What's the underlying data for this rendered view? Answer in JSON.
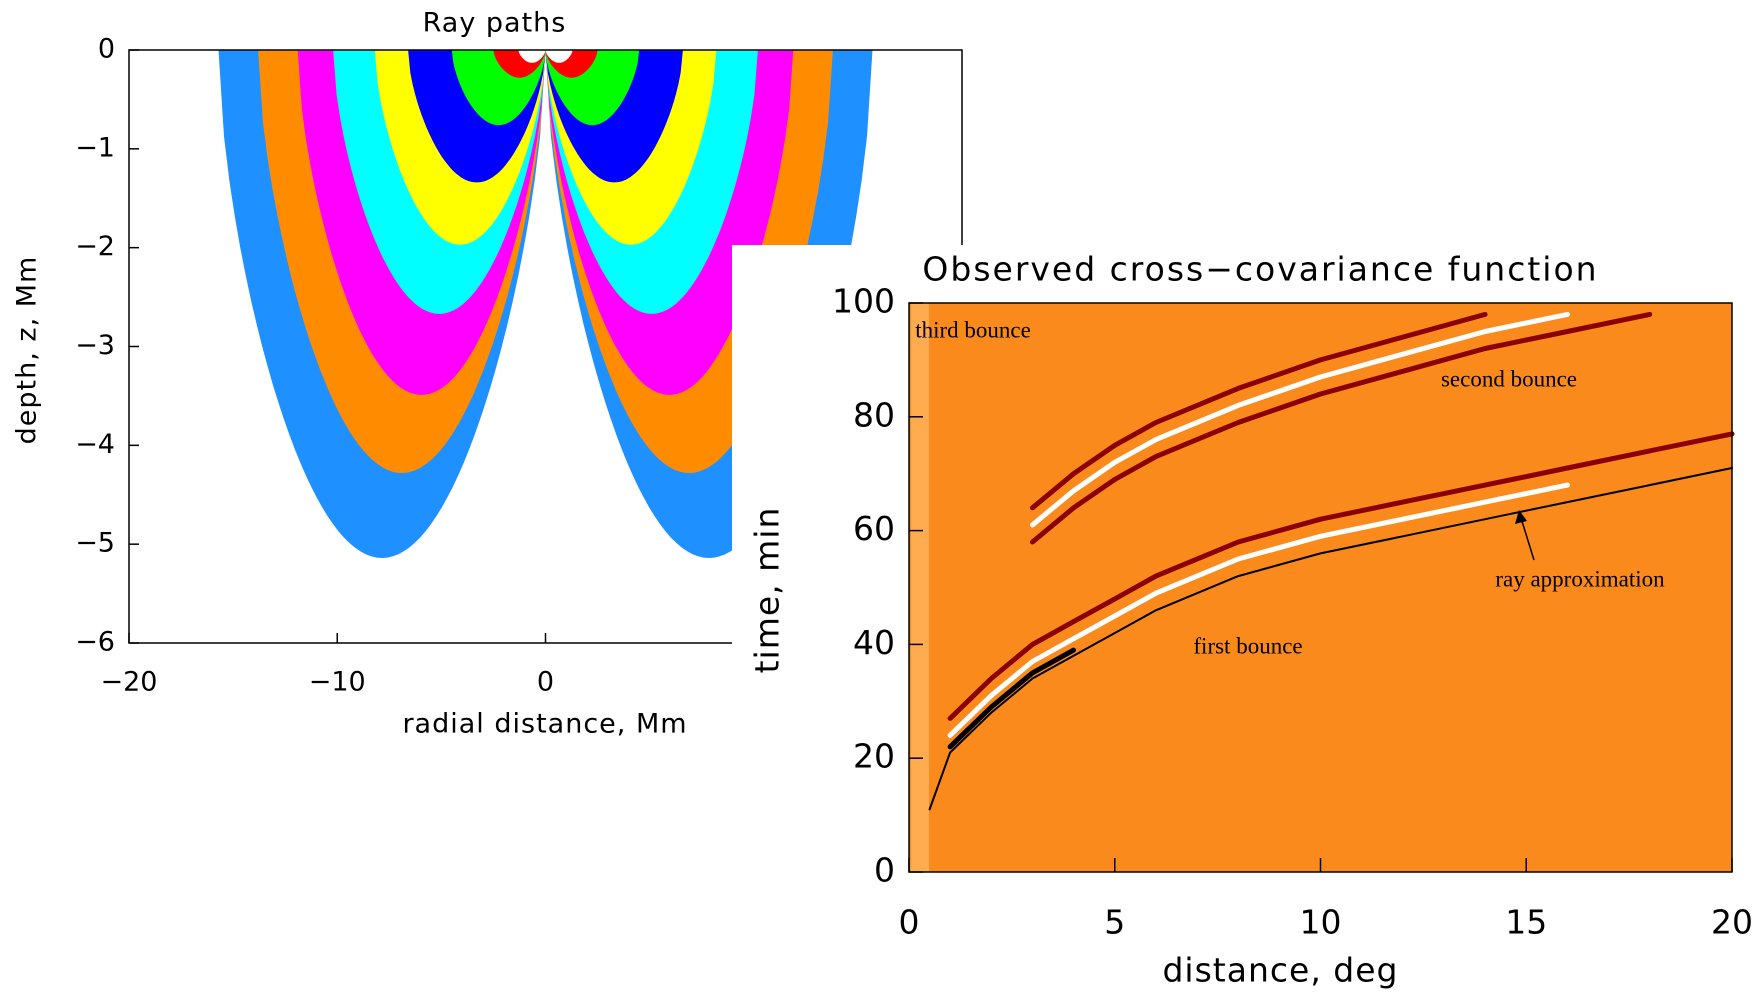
{
  "chart_data": [
    {
      "type": "rays",
      "title": "Ray paths",
      "xlabel": "radial distance, Mm",
      "ylabel": "depth, z,  Mm",
      "xlim": [
        -20,
        20
      ],
      "xticks": [
        {
          "value": -20,
          "label": "−20"
        },
        {
          "value": -10,
          "label": "−10"
        },
        0
      ],
      "ylim": [
        -6,
        0
      ],
      "yticks": [
        0,
        {
          "value": -1,
          "label": "−1"
        },
        {
          "value": -2,
          "label": "−2"
        },
        {
          "value": -3,
          "label": "−3"
        },
        {
          "value": -4,
          "label": "−4"
        },
        {
          "value": -5,
          "label": "−5"
        },
        {
          "value": -6,
          "label": "−6"
        }
      ],
      "bands": [
        {
          "color": "#1e90ff",
          "distance": 15.7,
          "depth": -5.14
        },
        {
          "color": "#ff8c00",
          "distance": 13.8,
          "depth": -4.28
        },
        {
          "color": "#ff00ff",
          "distance": 11.9,
          "depth": -3.49
        },
        {
          "color": "#00ffff",
          "distance": 10.2,
          "depth": -2.67
        },
        {
          "color": "#ffff00",
          "distance": 8.2,
          "depth": -1.97
        },
        {
          "color": "#0000ff",
          "distance": 6.6,
          "depth": -1.34
        },
        {
          "color": "#00ff00",
          "distance": 4.5,
          "depth": -0.76
        },
        {
          "color": "#ff0000",
          "distance": 2.5,
          "depth": -0.28
        },
        {
          "color": "#ffffff",
          "distance": 1.3,
          "depth": -0.13
        }
      ]
    },
    {
      "type": "line",
      "title": "Observed cross−covariance function",
      "xlabel": "distance, deg",
      "ylabel": "time, min",
      "xlim": [
        0,
        20
      ],
      "xticks": [
        0,
        5,
        10,
        15,
        20
      ],
      "ylim": [
        0,
        100
      ],
      "yticks": [
        0,
        20,
        40,
        60,
        80,
        100
      ],
      "background": "#fb8a1c",
      "annotations": [
        "third bounce",
        "second bounce",
        "ray approximation",
        "first bounce"
      ],
      "x": [
        0.5,
        1,
        2,
        3,
        4,
        5,
        6,
        8,
        10,
        12,
        14,
        16,
        18,
        20
      ],
      "series": [
        {
          "color": "#8b0000",
          "linewidth": 5,
          "values": [
            null,
            27,
            34,
            40,
            44,
            48,
            52,
            58,
            62,
            65,
            68,
            71,
            74,
            77
          ]
        },
        {
          "color": "#ffffff",
          "linewidth": 5,
          "values": [
            null,
            24,
            31,
            37,
            41,
            45,
            49,
            55,
            59,
            62,
            65,
            68,
            null,
            null
          ]
        },
        {
          "color": "#000000",
          "linewidth": 5,
          "values": [
            null,
            22,
            29,
            35,
            39,
            null,
            null,
            null,
            null,
            null,
            null,
            null,
            null,
            null
          ]
        },
        {
          "color": "#8b0000",
          "linewidth": 5,
          "values": [
            null,
            null,
            null,
            58,
            64,
            69,
            73,
            79,
            84,
            88,
            92,
            95,
            98,
            null
          ]
        },
        {
          "color": "#ffffff",
          "linewidth": 5,
          "values": [
            null,
            null,
            null,
            61,
            67,
            72,
            76,
            82,
            87,
            91,
            95,
            98,
            null,
            null
          ]
        },
        {
          "color": "#8b0000",
          "linewidth": 5,
          "values": [
            null,
            null,
            null,
            64,
            70,
            75,
            79,
            85,
            90,
            94,
            98,
            null,
            null,
            null
          ]
        },
        {
          "color": "#000000",
          "linewidth": 2,
          "values": [
            11,
            21,
            28,
            34,
            38,
            42,
            46,
            52,
            56,
            59,
            62,
            65,
            68,
            71
          ]
        }
      ]
    }
  ]
}
